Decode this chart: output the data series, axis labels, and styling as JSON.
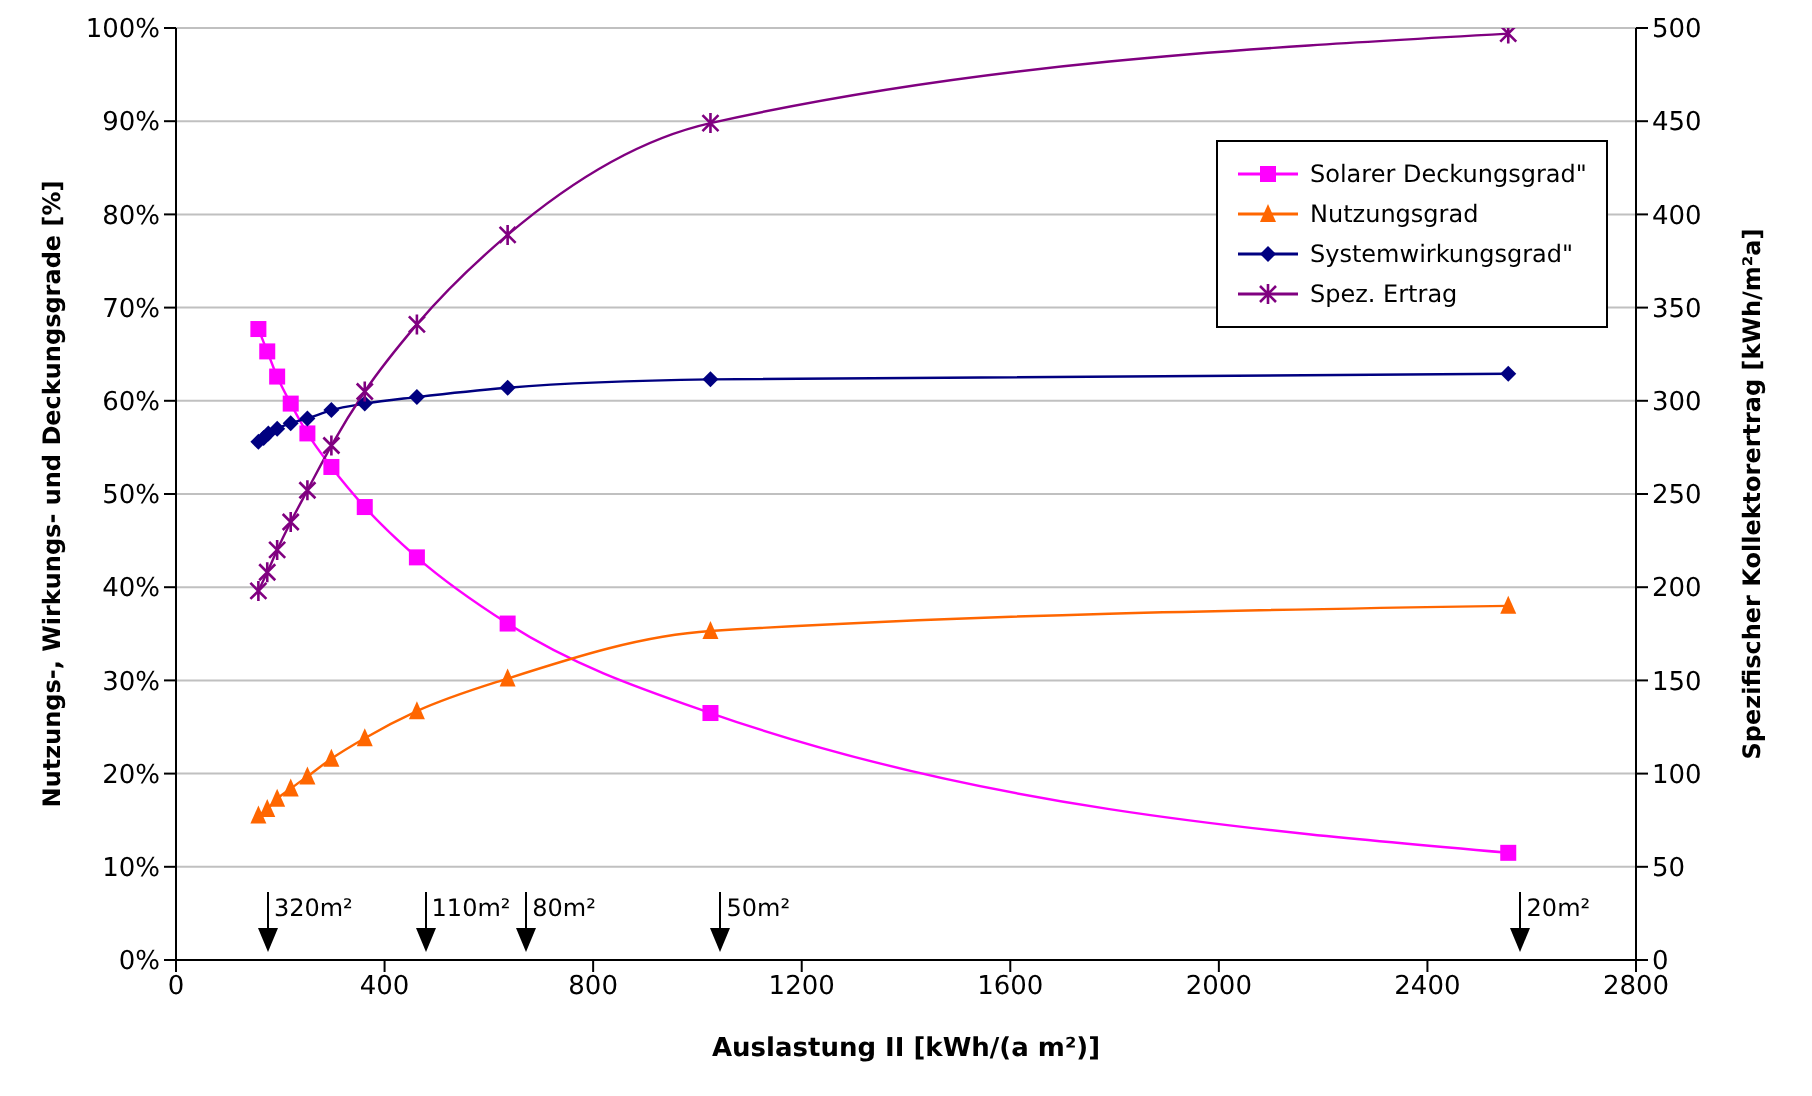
{
  "chart_data": {
    "type": "line",
    "xlabel": "Auslastung II  [kWh/(a m²)]",
    "ylabel": "Nutzungs-, Wirkungs- und Deckungsgrade [%]",
    "y2label": "Spezifischer Kollektorertrag [kWh/m²a]",
    "x": [
      158,
      175,
      194,
      220,
      252,
      298,
      362,
      462,
      636,
      1025,
      2555
    ],
    "series": [
      {
        "name": "Solarer Deckungsgrad\"",
        "color": "#ff00ff",
        "marker": "square",
        "values": [
          67.7,
          65.3,
          62.6,
          59.7,
          56.5,
          52.9,
          48.6,
          43.2,
          36.1,
          26.5,
          11.5
        ]
      },
      {
        "name": "Nutzungsgrad",
        "color": "#ff6600",
        "marker": "triangle",
        "values": [
          15.5,
          16.2,
          17.3,
          18.4,
          19.7,
          21.6,
          23.8,
          26.7,
          30.2,
          35.3,
          38.0
        ]
      },
      {
        "name": "Systemwirkungsgrad\"",
        "color": "#000080",
        "marker": "diamond",
        "x": [
          158,
          168,
          177,
          194,
          220,
          252,
          298,
          362,
          462,
          636,
          1025,
          2555
        ],
        "values": [
          55.6,
          56.0,
          56.5,
          57.0,
          57.6,
          58.1,
          59.0,
          59.7,
          60.4,
          61.4,
          62.3,
          62.9
        ]
      },
      {
        "name": "Spez. Ertrag",
        "color": "#800080",
        "marker": "cross",
        "axis": "y2",
        "values": [
          198,
          208,
          220,
          235,
          252,
          276,
          305,
          341,
          389,
          449,
          497
        ]
      }
    ],
    "xlim": [
      0,
      2800
    ],
    "xticks": [
      0,
      400,
      800,
      1200,
      1600,
      2000,
      2400,
      2800
    ],
    "ylim": [
      0,
      100
    ],
    "yticks": [
      {
        "value": 0,
        "label": "0%"
      },
      {
        "value": 10,
        "label": "10%"
      },
      {
        "value": 20,
        "label": "20%"
      },
      {
        "value": 30,
        "label": "30%"
      },
      {
        "value": 40,
        "label": "40%"
      },
      {
        "value": 50,
        "label": "50%"
      },
      {
        "value": 60,
        "label": "60%"
      },
      {
        "value": 70,
        "label": "70%"
      },
      {
        "value": 80,
        "label": "80%"
      },
      {
        "value": 90,
        "label": "90%"
      },
      {
        "value": 100,
        "label": "100%"
      }
    ],
    "y2lim": [
      0,
      500
    ],
    "y2ticks": [
      0,
      50,
      100,
      150,
      200,
      250,
      300,
      350,
      400,
      450,
      500
    ],
    "grid": "y",
    "legend": "top right",
    "line_style": "solid",
    "annotations": [
      "320m²",
      "110m²",
      "80m²",
      "50m²",
      "20m²"
    ]
  }
}
